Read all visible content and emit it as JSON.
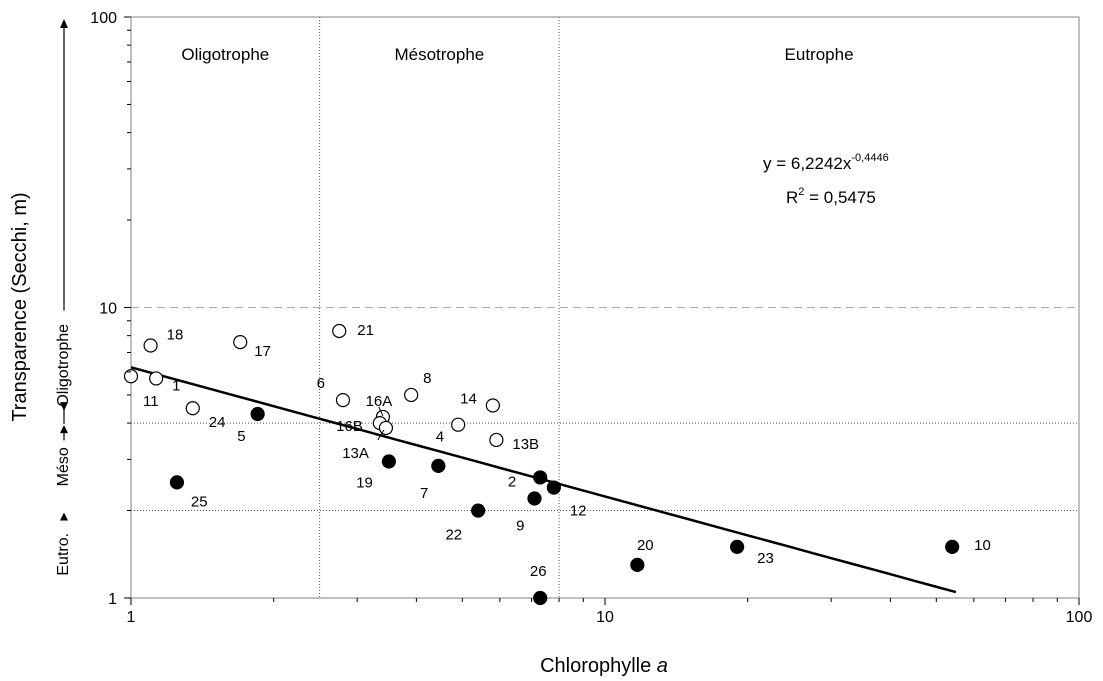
{
  "chart_data": {
    "type": "scatter",
    "xlabel": {
      "text": "Chlorophylle ",
      "italic": "a"
    },
    "ylabel": "Transparence (Secchi, m)",
    "xscale": "log",
    "yscale": "log",
    "xlim": [
      1,
      100
    ],
    "ylim": [
      1,
      100
    ],
    "x_ticks": [
      {
        "value": 1,
        "label": "1"
      },
      {
        "value": 10,
        "label": "10"
      },
      {
        "value": 100,
        "label": "100"
      }
    ],
    "y_ticks": [
      {
        "value": 1,
        "label": "1"
      },
      {
        "value": 10,
        "label": "10"
      },
      {
        "value": 100,
        "label": "100"
      }
    ],
    "zones": {
      "vertical_boundaries": [
        2.5,
        8
      ],
      "horizontal_boundaries": [
        10,
        4,
        2
      ],
      "x_labels": [
        "Oligotrophe",
        "Mésotrophe",
        "Eutrophe"
      ],
      "y_labels": [
        "Oligotrophe",
        "Méso",
        "Eutro."
      ]
    },
    "equation": {
      "lhs": "y = 6,2242x",
      "exponent": "-0,4446"
    },
    "r2": {
      "lhs": "R",
      "sup": "2",
      "rhs": " = 0,5475"
    },
    "trendline": {
      "a": 6.2242,
      "b": -0.4446,
      "x_range": [
        1,
        55
      ]
    },
    "series": [
      {
        "marker": "open",
        "points": [
          {
            "label": "18",
            "x": 1.1,
            "y": 7.4
          },
          {
            "label": "1",
            "x": 1.13,
            "y": 5.7
          },
          {
            "label": "11",
            "x": 1.0,
            "y": 5.8
          },
          {
            "label": "17",
            "x": 1.7,
            "y": 7.6
          },
          {
            "label": "24",
            "x": 1.35,
            "y": 4.5
          },
          {
            "label": "21",
            "x": 2.75,
            "y": 8.3
          },
          {
            "label": "6",
            "x": 2.8,
            "y": 4.8
          },
          {
            "label": "16A",
            "x": 3.4,
            "y": 4.2
          },
          {
            "label": "16B",
            "x": 3.35,
            "y": 4.0
          },
          {
            "label": "13A",
            "x": 3.45,
            "y": 3.85
          },
          {
            "label": "8",
            "x": 3.9,
            "y": 5.0
          },
          {
            "label": "4",
            "x": 4.9,
            "y": 3.95
          },
          {
            "label": "14",
            "x": 5.8,
            "y": 4.6
          },
          {
            "label": "13B",
            "x": 5.9,
            "y": 3.5
          }
        ]
      },
      {
        "marker": "filled",
        "points": [
          {
            "label": "5",
            "x": 1.85,
            "y": 4.3
          },
          {
            "label": "25",
            "x": 1.25,
            "y": 2.5
          },
          {
            "label": "19",
            "x": 3.5,
            "y": 2.95
          },
          {
            "label": "7",
            "x": 4.45,
            "y": 2.85
          },
          {
            "label": "2",
            "x": 7.3,
            "y": 2.6
          },
          {
            "label": "9",
            "x": 7.1,
            "y": 2.2
          },
          {
            "label": "12",
            "x": 7.8,
            "y": 2.4
          },
          {
            "label": "22",
            "x": 5.4,
            "y": 2.0
          },
          {
            "label": "26",
            "x": 7.3,
            "y": 1.0
          },
          {
            "label": "20",
            "x": 11.7,
            "y": 1.3
          },
          {
            "label": "23",
            "x": 19.0,
            "y": 1.5
          },
          {
            "label": "10",
            "x": 54.0,
            "y": 1.5
          }
        ]
      }
    ]
  }
}
